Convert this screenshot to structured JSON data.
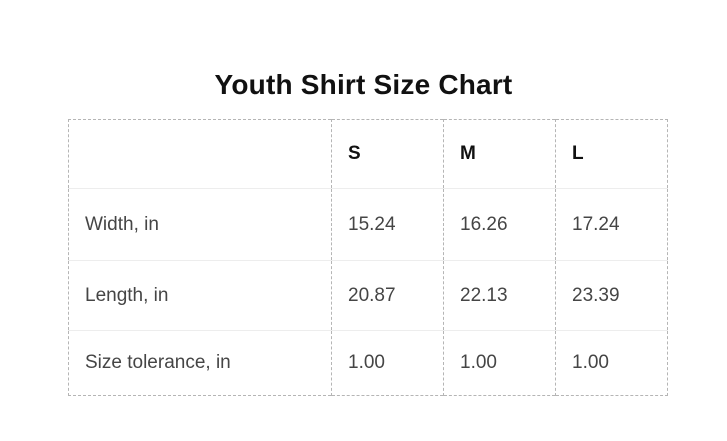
{
  "title": "Youth Shirt Size Chart",
  "colors": {
    "background": "#ffffff",
    "title_text": "#111111",
    "header_text": "#111111",
    "cell_text": "#454545",
    "dashed_border": "#b5b5b5",
    "row_separator": "#ededed"
  },
  "chart_data": {
    "type": "table",
    "title": "Youth Shirt Size Chart",
    "columns": [
      "",
      "S",
      "M",
      "L"
    ],
    "rows": [
      {
        "label": "Width, in",
        "values": [
          "15.24",
          "16.26",
          "17.24"
        ]
      },
      {
        "label": "Length, in",
        "values": [
          "20.87",
          "22.13",
          "23.39"
        ]
      },
      {
        "label": "Size tolerance, in",
        "values": [
          "1.00",
          "1.00",
          "1.00"
        ]
      }
    ]
  }
}
